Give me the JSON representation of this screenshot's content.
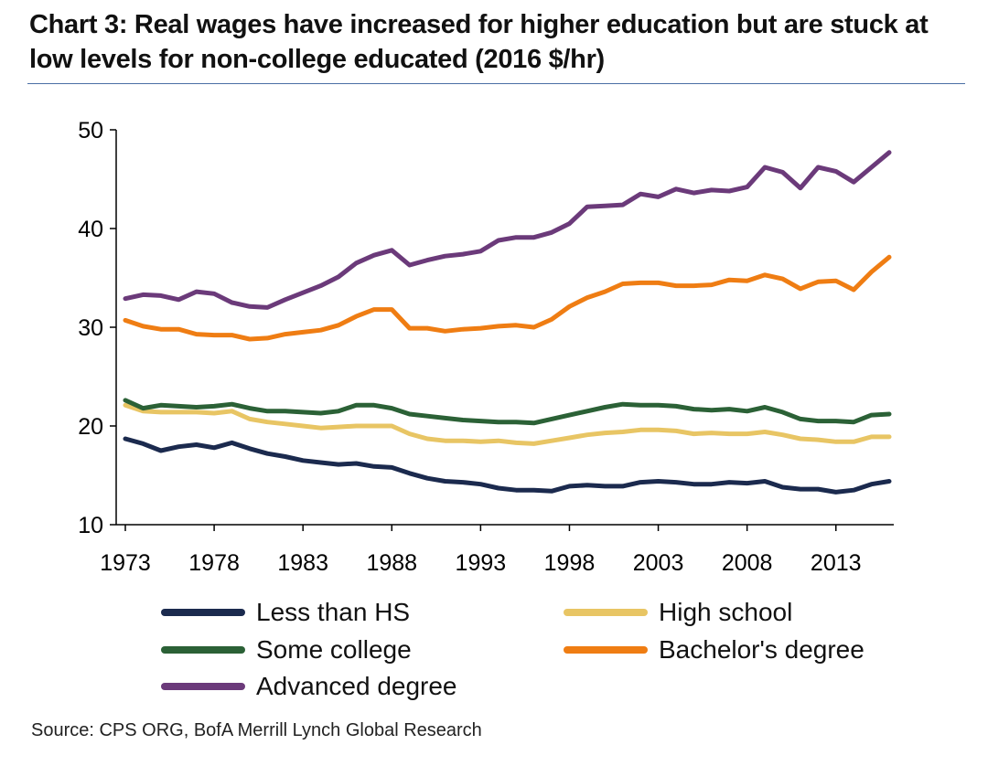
{
  "title": "Chart 3: Real wages have increased for higher education but are stuck at low levels for non-college educated (2016 $/hr)",
  "source": "Source:  CPS ORG, BofA Merrill Lynch Global Research",
  "colors": {
    "less_than_hs": "#1b2a4e",
    "high_school": "#e8c564",
    "some_college": "#2b6136",
    "bachelors": "#ef7d13",
    "advanced": "#6b3a7a"
  },
  "chart_data": {
    "type": "line",
    "title": "Chart 3: Real wages have increased for higher education but are stuck at low levels for non-college educated (2016 $/hr)",
    "xlabel": "",
    "ylabel": "",
    "ylim": [
      10,
      50
    ],
    "yticks": [
      "10",
      "20",
      "30",
      "40",
      "50"
    ],
    "xticks": [
      "1973",
      "1978",
      "1983",
      "1988",
      "1993",
      "1998",
      "2003",
      "2008",
      "2013"
    ],
    "xlim": [
      1973,
      2016
    ],
    "grid": false,
    "legend": "bottom",
    "x": [
      1973,
      1974,
      1975,
      1976,
      1977,
      1978,
      1979,
      1980,
      1981,
      1982,
      1983,
      1984,
      1985,
      1986,
      1987,
      1988,
      1989,
      1990,
      1991,
      1992,
      1993,
      1994,
      1995,
      1996,
      1997,
      1998,
      1999,
      2000,
      2001,
      2002,
      2003,
      2004,
      2005,
      2006,
      2007,
      2008,
      2009,
      2010,
      2011,
      2012,
      2013,
      2014,
      2015,
      2016
    ],
    "series": [
      {
        "key": "less_than_hs",
        "name": "Less than HS",
        "values": [
          18.7,
          18.2,
          17.5,
          17.9,
          18.1,
          17.8,
          18.3,
          17.7,
          17.2,
          16.9,
          16.5,
          16.3,
          16.1,
          16.2,
          15.9,
          15.8,
          15.2,
          14.7,
          14.4,
          14.3,
          14.1,
          13.7,
          13.5,
          13.5,
          13.4,
          13.9,
          14.0,
          13.9,
          13.9,
          14.3,
          14.4,
          14.3,
          14.1,
          14.1,
          14.3,
          14.2,
          14.4,
          13.8,
          13.6,
          13.6,
          13.3,
          13.5,
          14.1,
          14.4
        ]
      },
      {
        "key": "high_school",
        "name": "High school",
        "values": [
          22.1,
          21.5,
          21.4,
          21.4,
          21.4,
          21.3,
          21.5,
          20.7,
          20.4,
          20.2,
          20.0,
          19.8,
          19.9,
          20.0,
          20.0,
          20.0,
          19.2,
          18.7,
          18.5,
          18.5,
          18.4,
          18.5,
          18.3,
          18.2,
          18.5,
          18.8,
          19.1,
          19.3,
          19.4,
          19.6,
          19.6,
          19.5,
          19.2,
          19.3,
          19.2,
          19.2,
          19.4,
          19.1,
          18.7,
          18.6,
          18.4,
          18.4,
          18.9,
          18.9
        ]
      },
      {
        "key": "some_college",
        "name": "Some college",
        "values": [
          22.6,
          21.8,
          22.1,
          22.0,
          21.9,
          22.0,
          22.2,
          21.8,
          21.5,
          21.5,
          21.4,
          21.3,
          21.5,
          22.1,
          22.1,
          21.8,
          21.2,
          21.0,
          20.8,
          20.6,
          20.5,
          20.4,
          20.4,
          20.3,
          20.7,
          21.1,
          21.5,
          21.9,
          22.2,
          22.1,
          22.1,
          22.0,
          21.7,
          21.6,
          21.7,
          21.5,
          21.9,
          21.4,
          20.7,
          20.5,
          20.5,
          20.4,
          21.1,
          21.2
        ]
      },
      {
        "key": "bachelors",
        "name": "Bachelor's degree",
        "values": [
          30.7,
          30.1,
          29.8,
          29.8,
          29.3,
          29.2,
          29.2,
          28.8,
          28.9,
          29.3,
          29.5,
          29.7,
          30.2,
          31.1,
          31.8,
          31.8,
          29.9,
          29.9,
          29.6,
          29.8,
          29.9,
          30.1,
          30.2,
          30.0,
          30.8,
          32.1,
          33.0,
          33.6,
          34.4,
          34.5,
          34.5,
          34.2,
          34.2,
          34.3,
          34.8,
          34.7,
          35.3,
          34.9,
          33.9,
          34.6,
          34.7,
          33.8,
          35.6,
          37.1
        ]
      },
      {
        "key": "advanced",
        "name": "Advanced degree",
        "values": [
          32.9,
          33.3,
          33.2,
          32.8,
          33.6,
          33.4,
          32.5,
          32.1,
          32.0,
          32.8,
          33.5,
          34.2,
          35.1,
          36.5,
          37.3,
          37.8,
          36.3,
          36.8,
          37.2,
          37.4,
          37.7,
          38.8,
          39.1,
          39.1,
          39.6,
          40.5,
          42.2,
          42.3,
          42.4,
          43.5,
          43.2,
          44.0,
          43.6,
          43.9,
          43.8,
          44.2,
          46.2,
          45.7,
          44.1,
          46.2,
          45.8,
          44.7,
          46.2,
          47.7
        ]
      }
    ]
  }
}
